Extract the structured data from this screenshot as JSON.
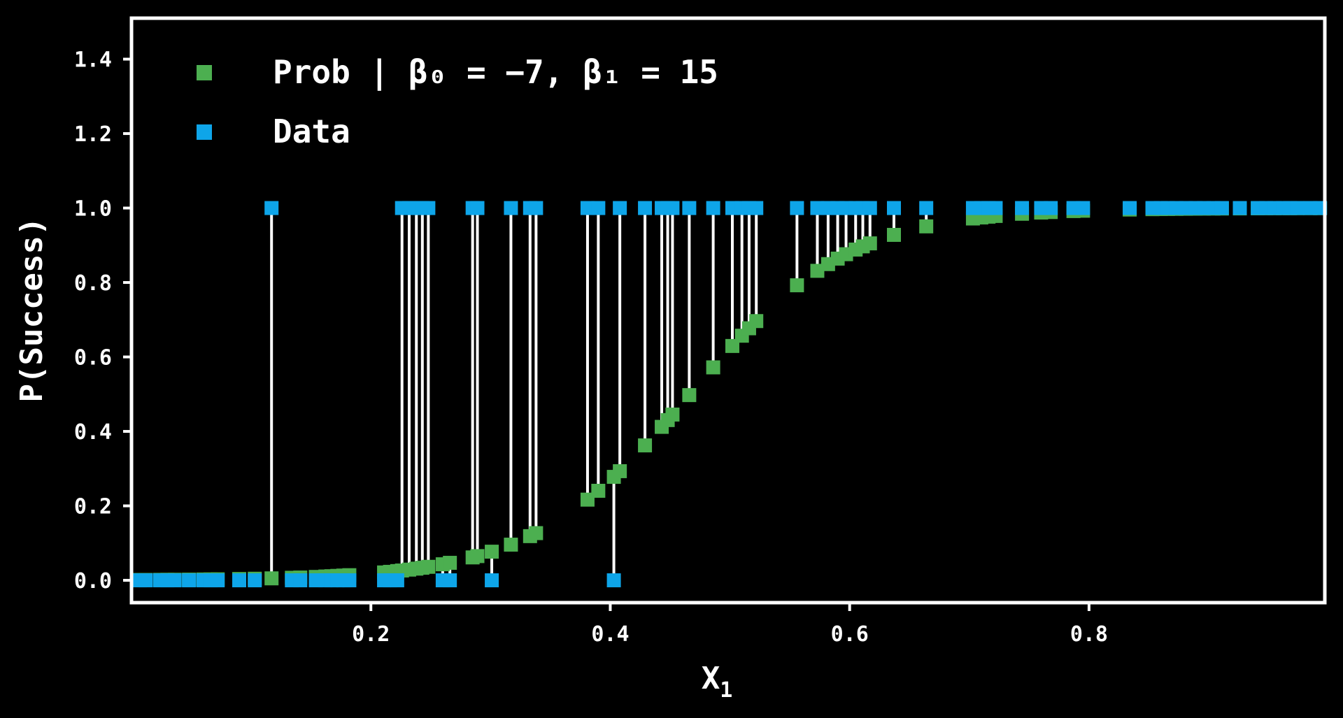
{
  "chart_data": {
    "type": "scatter",
    "xlabel": "X",
    "xlabel_subscript": "1",
    "ylabel": "P(Success)",
    "xlim": [
      0.0,
      0.997
    ],
    "ylim": [
      -0.06,
      1.51
    ],
    "xticks": [
      0.2,
      0.4,
      0.6,
      0.8
    ],
    "xtick_labels": [
      "0.2",
      "0.4",
      "0.6",
      "0.8"
    ],
    "yticks": [
      0.0,
      0.2,
      0.4,
      0.6,
      0.8,
      1.0,
      1.2,
      1.4
    ],
    "ytick_labels": [
      "0.0",
      "0.2",
      "0.4",
      "0.6",
      "0.8",
      "1.0",
      "1.2",
      "1.4"
    ],
    "grid": false,
    "legend_position": "top-left",
    "colors": {
      "prob": "#4caf50",
      "data": "#0ea5e9",
      "residual": "#ffffff",
      "axes": "#ffffff",
      "background": "#000000"
    },
    "model": {
      "beta0": -7,
      "beta1": 15
    },
    "legend": [
      {
        "key": "prob",
        "label_prefix": "Prob | ",
        "label_math": "β₀ = −7, β₁ = 15"
      },
      {
        "key": "data",
        "label": "Data"
      }
    ],
    "data_points": [
      {
        "x": 0.007,
        "y": 0
      },
      {
        "x": 0.012,
        "y": 0
      },
      {
        "x": 0.024,
        "y": 0
      },
      {
        "x": 0.03,
        "y": 0
      },
      {
        "x": 0.036,
        "y": 0
      },
      {
        "x": 0.048,
        "y": 0
      },
      {
        "x": 0.06,
        "y": 0
      },
      {
        "x": 0.066,
        "y": 0
      },
      {
        "x": 0.072,
        "y": 0
      },
      {
        "x": 0.09,
        "y": 0
      },
      {
        "x": 0.103,
        "y": 0
      },
      {
        "x": 0.117,
        "y": 1
      },
      {
        "x": 0.134,
        "y": 0
      },
      {
        "x": 0.141,
        "y": 0
      },
      {
        "x": 0.154,
        "y": 0
      },
      {
        "x": 0.162,
        "y": 0
      },
      {
        "x": 0.167,
        "y": 0
      },
      {
        "x": 0.172,
        "y": 0
      },
      {
        "x": 0.177,
        "y": 0
      },
      {
        "x": 0.182,
        "y": 0
      },
      {
        "x": 0.211,
        "y": 0
      },
      {
        "x": 0.216,
        "y": 0
      },
      {
        "x": 0.222,
        "y": 0
      },
      {
        "x": 0.226,
        "y": 1
      },
      {
        "x": 0.232,
        "y": 1
      },
      {
        "x": 0.238,
        "y": 1
      },
      {
        "x": 0.243,
        "y": 1
      },
      {
        "x": 0.248,
        "y": 1
      },
      {
        "x": 0.26,
        "y": 0
      },
      {
        "x": 0.266,
        "y": 0
      },
      {
        "x": 0.285,
        "y": 1
      },
      {
        "x": 0.289,
        "y": 1
      },
      {
        "x": 0.301,
        "y": 0
      },
      {
        "x": 0.317,
        "y": 1
      },
      {
        "x": 0.333,
        "y": 1
      },
      {
        "x": 0.338,
        "y": 1
      },
      {
        "x": 0.381,
        "y": 1
      },
      {
        "x": 0.39,
        "y": 1
      },
      {
        "x": 0.403,
        "y": 0
      },
      {
        "x": 0.408,
        "y": 1
      },
      {
        "x": 0.429,
        "y": 1
      },
      {
        "x": 0.443,
        "y": 1
      },
      {
        "x": 0.448,
        "y": 1
      },
      {
        "x": 0.452,
        "y": 1
      },
      {
        "x": 0.466,
        "y": 1
      },
      {
        "x": 0.486,
        "y": 1
      },
      {
        "x": 0.502,
        "y": 1
      },
      {
        "x": 0.51,
        "y": 1
      },
      {
        "x": 0.516,
        "y": 1
      },
      {
        "x": 0.522,
        "y": 1
      },
      {
        "x": 0.556,
        "y": 1
      },
      {
        "x": 0.573,
        "y": 1
      },
      {
        "x": 0.582,
        "y": 1
      },
      {
        "x": 0.59,
        "y": 1
      },
      {
        "x": 0.597,
        "y": 1
      },
      {
        "x": 0.605,
        "y": 1
      },
      {
        "x": 0.611,
        "y": 1
      },
      {
        "x": 0.617,
        "y": 1
      },
      {
        "x": 0.637,
        "y": 1
      },
      {
        "x": 0.664,
        "y": 1
      },
      {
        "x": 0.703,
        "y": 1
      },
      {
        "x": 0.71,
        "y": 1
      },
      {
        "x": 0.716,
        "y": 1
      },
      {
        "x": 0.722,
        "y": 1
      },
      {
        "x": 0.744,
        "y": 1
      },
      {
        "x": 0.76,
        "y": 1
      },
      {
        "x": 0.768,
        "y": 1
      },
      {
        "x": 0.787,
        "y": 1
      },
      {
        "x": 0.795,
        "y": 1
      },
      {
        "x": 0.834,
        "y": 1
      },
      {
        "x": 0.853,
        "y": 1
      },
      {
        "x": 0.86,
        "y": 1
      },
      {
        "x": 0.866,
        "y": 1
      },
      {
        "x": 0.873,
        "y": 1
      },
      {
        "x": 0.881,
        "y": 1
      },
      {
        "x": 0.889,
        "y": 1
      },
      {
        "x": 0.896,
        "y": 1
      },
      {
        "x": 0.904,
        "y": 1
      },
      {
        "x": 0.911,
        "y": 1
      },
      {
        "x": 0.926,
        "y": 1
      },
      {
        "x": 0.941,
        "y": 1
      },
      {
        "x": 0.948,
        "y": 1
      },
      {
        "x": 0.955,
        "y": 1
      },
      {
        "x": 0.962,
        "y": 1
      },
      {
        "x": 0.968,
        "y": 1
      },
      {
        "x": 0.974,
        "y": 1
      },
      {
        "x": 0.985,
        "y": 1
      },
      {
        "x": 0.993,
        "y": 1
      }
    ]
  }
}
